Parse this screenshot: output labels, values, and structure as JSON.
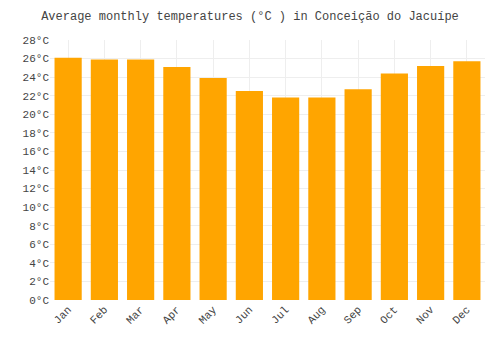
{
  "chart_data": {
    "type": "bar",
    "title": "Average monthly temperatures (°C ) in Conceição do Jacuípe",
    "categories": [
      "Jan",
      "Feb",
      "Mar",
      "Apr",
      "May",
      "Jun",
      "Jul",
      "Aug",
      "Sep",
      "Oct",
      "Nov",
      "Dec"
    ],
    "values": [
      26.1,
      25.9,
      25.9,
      25.1,
      23.9,
      22.5,
      21.8,
      21.8,
      22.7,
      24.4,
      25.2,
      25.7
    ],
    "color": "#FFA500",
    "ylim": [
      0,
      28
    ],
    "yticks": [
      {
        "value": 0,
        "label": "0°C"
      },
      {
        "value": 2,
        "label": "2°C"
      },
      {
        "value": 4,
        "label": "4°C"
      },
      {
        "value": 6,
        "label": "6°C"
      },
      {
        "value": 8,
        "label": "8°C"
      },
      {
        "value": 10,
        "label": "10°C"
      },
      {
        "value": 12,
        "label": "12°C"
      },
      {
        "value": 14,
        "label": "14°C"
      },
      {
        "value": 16,
        "label": "16°C"
      },
      {
        "value": 18,
        "label": "18°C"
      },
      {
        "value": 20,
        "label": "20°C"
      },
      {
        "value": 22,
        "label": "22°C"
      },
      {
        "value": 24,
        "label": "24°C"
      },
      {
        "value": 26,
        "label": "26°C"
      },
      {
        "value": 28,
        "label": "28°C"
      }
    ],
    "grid": true
  }
}
